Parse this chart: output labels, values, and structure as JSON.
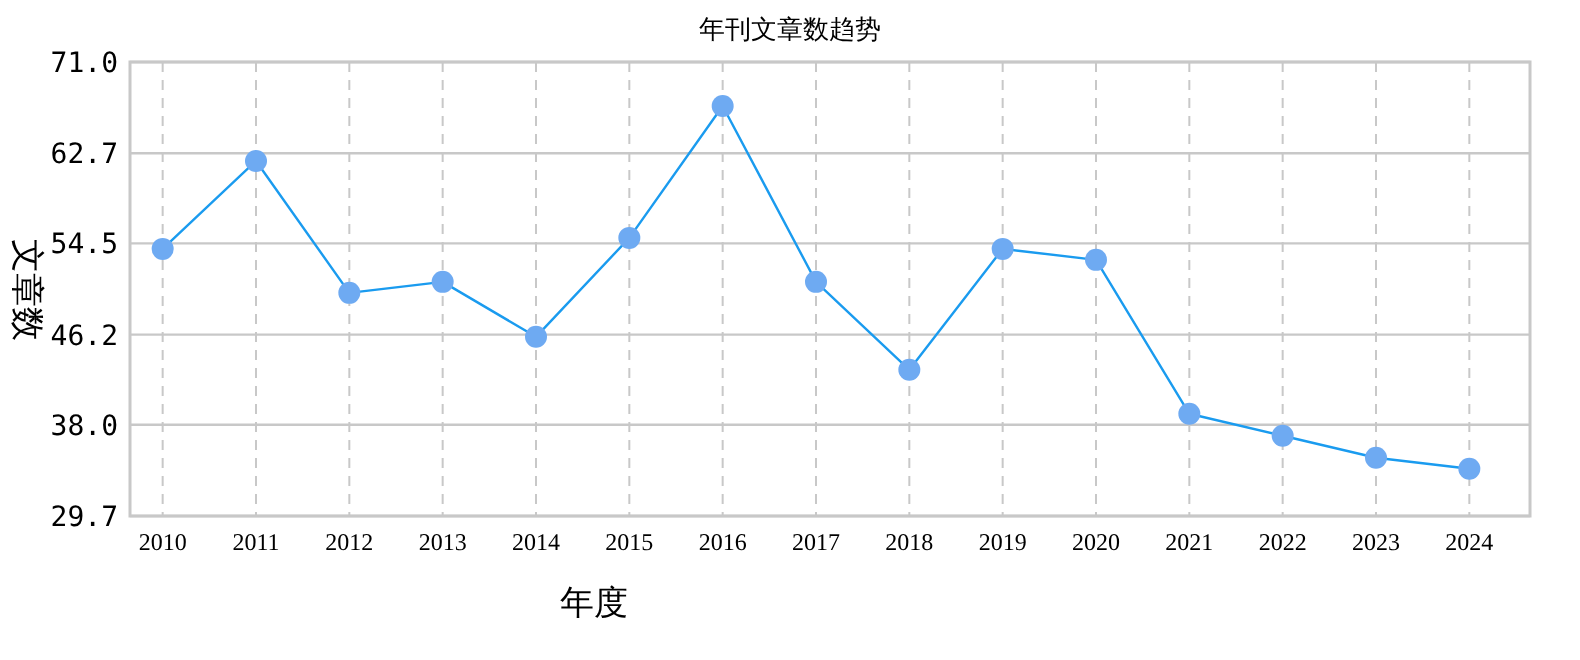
{
  "chart_data": {
    "type": "line",
    "title": "年刊文章数趋势",
    "xlabel": "年度",
    "ylabel": "文章数",
    "categories": [
      "2010",
      "2011",
      "2012",
      "2013",
      "2014",
      "2015",
      "2016",
      "2017",
      "2018",
      "2019",
      "2020",
      "2021",
      "2022",
      "2023",
      "2024"
    ],
    "series": [
      {
        "color": "#1a9bef",
        "colors": [
          "#6eaaf2",
          "#6eaaf2",
          "#6eaaf2",
          "#6eaaf2",
          "#6eaaf2",
          "#6eaaf2",
          "#6eaaf2",
          "#6eaaf2",
          "#6eaaf2",
          "#6eaaf2",
          "#6eaaf2",
          "#6eaaf2",
          "#6eaaf2",
          "#6eaaf2",
          "#6eaaf2"
        ],
        "values": [
          54,
          62,
          50,
          51,
          46,
          55,
          67,
          51,
          43,
          54,
          53,
          39,
          37,
          35,
          34
        ]
      }
    ],
    "ylim": [
      29.7,
      71.0
    ],
    "yticks": [
      {
        "value": 29.7,
        "label": "29.7"
      },
      {
        "value": 38.0,
        "label": "38.0"
      },
      {
        "value": 46.2,
        "label": "46.2"
      },
      {
        "value": 54.5,
        "label": "54.5"
      },
      {
        "value": 62.7,
        "label": "62.7"
      },
      {
        "value": 71.0,
        "label": "71.0"
      }
    ],
    "grid": true,
    "marker": "circle",
    "line_style": "solid"
  }
}
